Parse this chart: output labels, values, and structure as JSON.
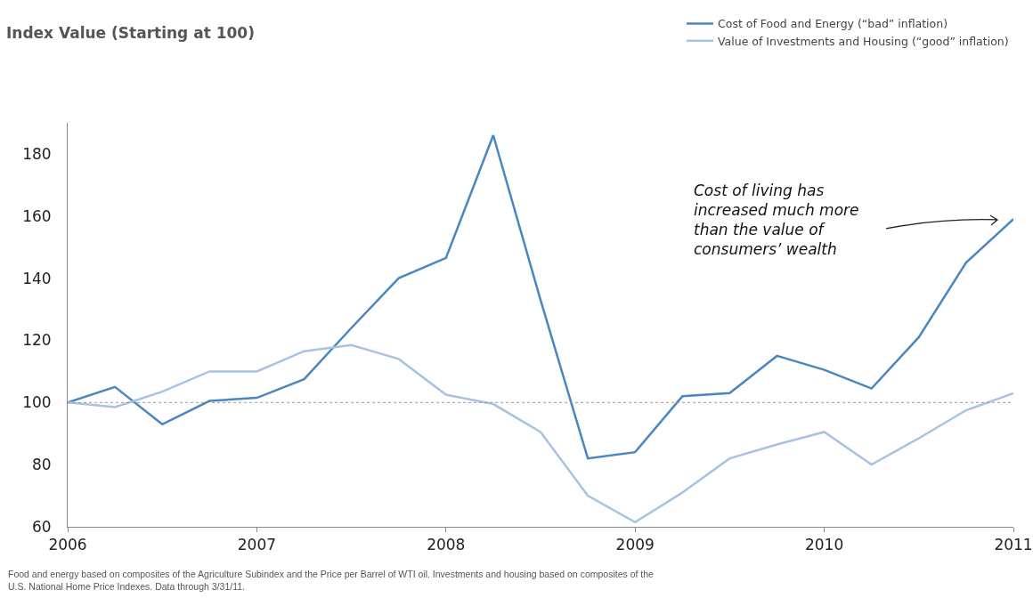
{
  "chart_data": {
    "type": "line",
    "title": "Index Value (Starting at 100)",
    "x": [
      2006,
      2006.25,
      2006.5,
      2006.75,
      2007,
      2007.25,
      2007.5,
      2007.75,
      2008,
      2008.25,
      2008.5,
      2008.75,
      2009,
      2009.25,
      2009.5,
      2009.75,
      2010,
      2010.25,
      2010.5,
      2010.75,
      2011
    ],
    "series": [
      {
        "name": "Cost of Food and Energy (“bad” inflation)",
        "color": "#4a86c2",
        "values": [
          100,
          105,
          93,
          100.5,
          101.5,
          107.5,
          124,
          140,
          146.5,
          186,
          133,
          82,
          84,
          102,
          103,
          115,
          110.5,
          104.5,
          121,
          145,
          159
        ]
      },
      {
        "name": "Value of Investments and Housing (“good” inflation)",
        "color": "#a7c3e3",
        "values": [
          100,
          98.5,
          103.5,
          110,
          110,
          116.5,
          118.5,
          114,
          102.5,
          99.5,
          90.5,
          70,
          61.5,
          71,
          82,
          86.5,
          90.5,
          80,
          88.5,
          97.5,
          103
        ]
      }
    ],
    "xlim": [
      2006,
      2011
    ],
    "xticks": [
      2006,
      2007,
      2008,
      2009,
      2010,
      2011
    ],
    "ylim": [
      60,
      190
    ],
    "yticks": [
      60,
      80,
      100,
      120,
      140,
      160,
      180
    ],
    "ref_lines": [
      {
        "axis": "y",
        "value": 100,
        "color": "#999999",
        "line_style": "dotted"
      }
    ],
    "annotations": [
      "Cost of living has\nincreased much more\nthan the value of\nconsumers’ wealth",
      "Food and energy based on composites of the Agriculture Subindex and the Price per Barrel of WTI oil. Investments and housing based on composites of the\nU.S. National Home Price Indexes. Data through 3/31/11."
    ],
    "grid": false,
    "legend": "top right",
    "marker": "none",
    "line_style": "solid"
  }
}
